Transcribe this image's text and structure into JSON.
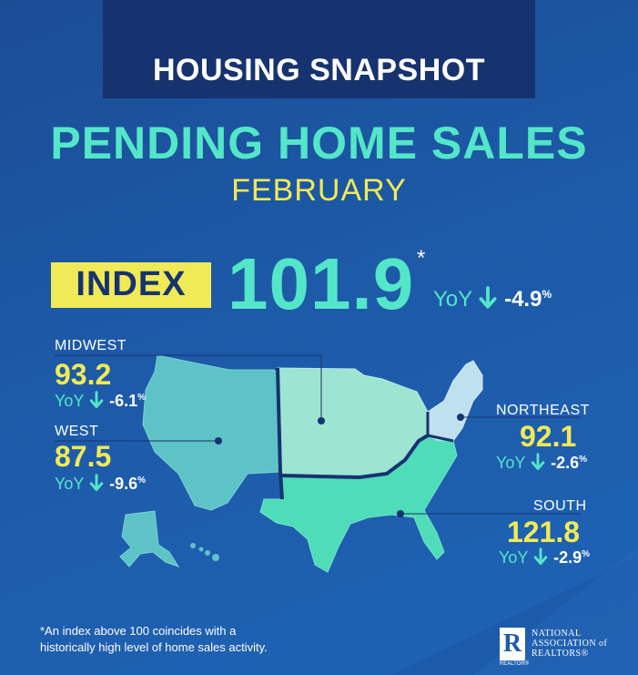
{
  "header": {
    "snapshot_title": "HOUSING SNAPSHOT",
    "main_title": "PENDING HOME SALES",
    "month": "FEBRUARY"
  },
  "index": {
    "label": "INDEX",
    "value": "101.9",
    "asterisk": "*",
    "yoy_label": "YoY",
    "yoy_change": "-4.9",
    "yoy_unit": "%"
  },
  "regions": {
    "midwest": {
      "name": "MIDWEST",
      "value": "93.2",
      "yoy_label": "YoY",
      "yoy_change": "-6.1",
      "yoy_unit": "%"
    },
    "west": {
      "name": "WEST",
      "value": "87.5",
      "yoy_label": "YoY",
      "yoy_change": "-9.6",
      "yoy_unit": "%"
    },
    "northeast": {
      "name": "NORTHEAST",
      "value": "92.1",
      "yoy_label": "YoY",
      "yoy_change": "-2.6",
      "yoy_unit": "%"
    },
    "south": {
      "name": "SOUTH",
      "value": "121.8",
      "yoy_label": "YoY",
      "yoy_change": "-2.9",
      "yoy_unit": "%"
    }
  },
  "footnote": {
    "line1": "*An index above 100 coincides with a",
    "line2": "historically high level of home sales activity."
  },
  "logo": {
    "mark": "R",
    "mark_caption": "REALTOR®",
    "line1": "NATIONAL",
    "line2": "ASSOCIATION of",
    "line3": "REALTORS®"
  },
  "colors": {
    "background": "#1d5aa8",
    "banner": "#16336f",
    "accent_teal": "#53e6c8",
    "accent_yellow": "#f1ea57",
    "west_fill": "#5ec3c6",
    "midwest_fill": "#9ee4d3",
    "northeast_fill": "#bfe1ef",
    "south_fill": "#4fdcb8"
  }
}
